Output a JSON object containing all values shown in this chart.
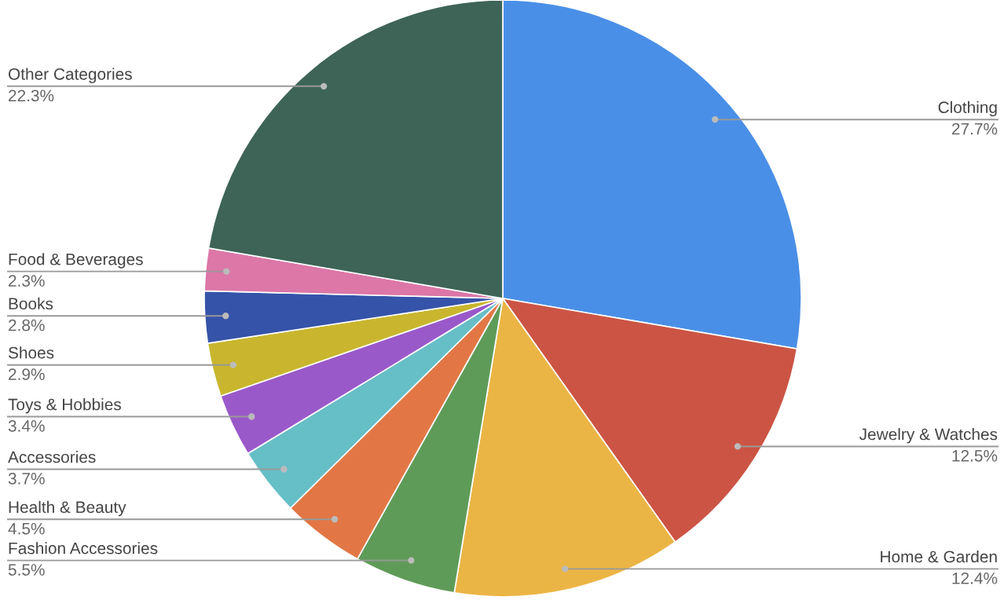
{
  "chart_data": {
    "type": "pie",
    "categories": [
      "Clothing",
      "Jewelry & Watches",
      "Home & Garden",
      "Fashion Accessories",
      "Health & Beauty",
      "Accessories",
      "Toys & Hobbies",
      "Shoes",
      "Books",
      "Food & Beverages",
      "Other Categories"
    ],
    "values": [
      27.7,
      12.5,
      12.4,
      5.5,
      4.5,
      3.7,
      3.4,
      2.9,
      2.8,
      2.3,
      22.3
    ],
    "value_labels": [
      "27.7%",
      "12.5%",
      "12.4%",
      "5.5%",
      "4.5%",
      "3.7%",
      "3.4%",
      "2.9%",
      "2.8%",
      "2.3%",
      "22.3%"
    ],
    "colors": [
      "#4a8fe7",
      "#cc5444",
      "#ebb545",
      "#5f9b58",
      "#e27745",
      "#66bec7",
      "#9a59c9",
      "#c9b62e",
      "#3553a8",
      "#dc77a8",
      "#3e6457"
    ],
    "legend": false
  }
}
